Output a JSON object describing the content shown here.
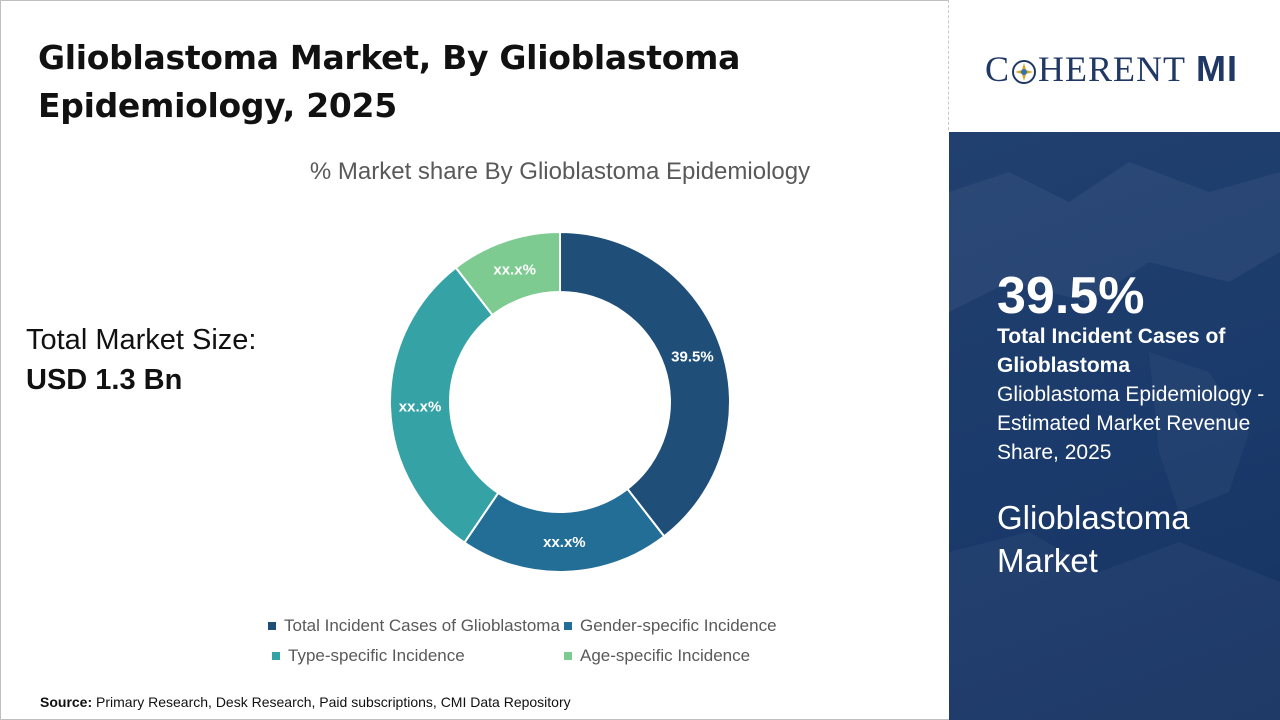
{
  "header": {
    "title": "Glioblastoma Market, By Glioblastoma Epidemiology, 2025"
  },
  "market_size": {
    "label": "Total Market Size:",
    "value": "USD 1.3 Bn"
  },
  "chart_data": {
    "type": "pie",
    "title": "% Market share By Glioblastoma Epidemiology",
    "donut": true,
    "categories": [
      "Total Incident Cases of Glioblastoma",
      "Gender-specific Incidence",
      "Type-specific Incidence",
      "Age-specific Incidence"
    ],
    "values": [
      39.5,
      20.0,
      30.0,
      10.5
    ],
    "data_labels": [
      "39.5%",
      "xx.x%",
      "xx.x%",
      "xx.x%"
    ],
    "colors": [
      "#1f4e79",
      "#236e96",
      "#35a2a6",
      "#7dcb90"
    ],
    "legend": "bottom"
  },
  "source": {
    "label": "Source:",
    "text": "Primary Research, Desk Research, Paid subscriptions, CMI Data Repository"
  },
  "brand": {
    "name_part1": "C",
    "name_part2": "HERENT",
    "name_part3": "MI",
    "logo": "coherent-mi-logo"
  },
  "highlight": {
    "value": "39.5%",
    "label": "Total Incident Cases of Glioblastoma",
    "description": "Glioblastoma Epidemiology - Estimated Market Revenue Share, 2025",
    "market": "Glioblastoma Market"
  },
  "colors": {
    "panel": "#1a3a6b",
    "title_text": "#111111"
  }
}
